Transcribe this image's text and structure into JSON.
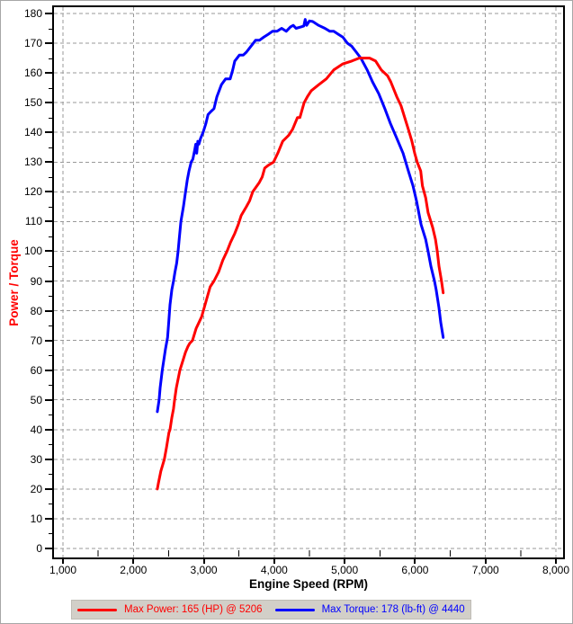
{
  "chart_data": {
    "type": "line",
    "title": "",
    "xlabel": "Engine Speed (RPM)",
    "ylabel": "Power / Torque",
    "xlim": [
      860,
      8100
    ],
    "ylim": [
      -3.3,
      182.7
    ],
    "grid": "dashed gray horizontal and vertical at major ticks",
    "legend_position": "bottom",
    "x_ticks": {
      "values": [
        1000,
        2000,
        3000,
        4000,
        5000,
        6000,
        7000,
        8000
      ],
      "labels": [
        "1,000",
        "2,000",
        "3,000",
        "4,000",
        "5,000",
        "6,000",
        "7,000",
        "8,000"
      ],
      "minor_step": 500
    },
    "y_ticks": {
      "values": [
        0,
        10,
        20,
        30,
        40,
        50,
        60,
        70,
        80,
        90,
        100,
        110,
        120,
        130,
        140,
        150,
        160,
        170,
        180
      ],
      "minor_step": 5
    },
    "series": [
      {
        "name": "Power",
        "units": "HP",
        "color": "#ff0000",
        "points": [
          [
            2340,
            20
          ],
          [
            2355,
            22
          ],
          [
            2390,
            26
          ],
          [
            2440,
            30
          ],
          [
            2470,
            34
          ],
          [
            2505,
            39
          ],
          [
            2520,
            40
          ],
          [
            2545,
            44
          ],
          [
            2570,
            47
          ],
          [
            2585,
            50
          ],
          [
            2610,
            54
          ],
          [
            2635,
            57
          ],
          [
            2660,
            60
          ],
          [
            2700,
            63
          ],
          [
            2740,
            66
          ],
          [
            2775,
            68
          ],
          [
            2800,
            69
          ],
          [
            2840,
            70
          ],
          [
            2890,
            74
          ],
          [
            2930,
            76
          ],
          [
            2970,
            78
          ],
          [
            3030,
            83
          ],
          [
            3090,
            88
          ],
          [
            3145,
            90
          ],
          [
            3210,
            93
          ],
          [
            3270,
            97
          ],
          [
            3330,
            100
          ],
          [
            3380,
            103
          ],
          [
            3440,
            106
          ],
          [
            3490,
            109
          ],
          [
            3530,
            112
          ],
          [
            3605,
            115
          ],
          [
            3650,
            117
          ],
          [
            3695,
            120
          ],
          [
            3785,
            123
          ],
          [
            3830,
            125
          ],
          [
            3865,
            128
          ],
          [
            3920,
            129
          ],
          [
            3990,
            130
          ],
          [
            4050,
            133
          ],
          [
            4120,
            137
          ],
          [
            4205,
            139
          ],
          [
            4260,
            141
          ],
          [
            4330,
            145
          ],
          [
            4365,
            145
          ],
          [
            4400,
            148
          ],
          [
            4425,
            150
          ],
          [
            4470,
            152
          ],
          [
            4525,
            154
          ],
          [
            4630,
            156
          ],
          [
            4740,
            158
          ],
          [
            4845,
            161
          ],
          [
            4970,
            163
          ],
          [
            5100,
            164
          ],
          [
            5206,
            165
          ],
          [
            5280,
            165
          ],
          [
            5355,
            165
          ],
          [
            5440,
            164
          ],
          [
            5520,
            161
          ],
          [
            5610,
            159
          ],
          [
            5655,
            157
          ],
          [
            5740,
            152
          ],
          [
            5800,
            149
          ],
          [
            5865,
            144
          ],
          [
            5905,
            141
          ],
          [
            5955,
            137
          ],
          [
            5995,
            133
          ],
          [
            6030,
            130
          ],
          [
            6080,
            127
          ],
          [
            6105,
            122
          ],
          [
            6150,
            118
          ],
          [
            6185,
            113
          ],
          [
            6250,
            108
          ],
          [
            6290,
            104
          ],
          [
            6315,
            100
          ],
          [
            6340,
            95
          ],
          [
            6375,
            90
          ],
          [
            6400,
            86
          ]
        ]
      },
      {
        "name": "Torque",
        "units": "lb-ft",
        "color": "#0000ff",
        "points": [
          [
            2340,
            46
          ],
          [
            2365,
            50
          ],
          [
            2380,
            54
          ],
          [
            2395,
            57
          ],
          [
            2410,
            60
          ],
          [
            2430,
            63
          ],
          [
            2455,
            67
          ],
          [
            2470,
            69
          ],
          [
            2485,
            71
          ],
          [
            2505,
            77
          ],
          [
            2520,
            82
          ],
          [
            2545,
            87
          ],
          [
            2570,
            90
          ],
          [
            2590,
            93
          ],
          [
            2615,
            96
          ],
          [
            2635,
            100
          ],
          [
            2650,
            104
          ],
          [
            2675,
            110
          ],
          [
            2710,
            115
          ],
          [
            2735,
            119
          ],
          [
            2765,
            124
          ],
          [
            2790,
            127
          ],
          [
            2820,
            130
          ],
          [
            2845,
            131
          ],
          [
            2870,
            134
          ],
          [
            2885,
            136
          ],
          [
            2900,
            133
          ],
          [
            2915,
            137
          ],
          [
            2930,
            136
          ],
          [
            2955,
            138
          ],
          [
            2990,
            140
          ],
          [
            3030,
            143
          ],
          [
            3060,
            146
          ],
          [
            3100,
            147
          ],
          [
            3145,
            148
          ],
          [
            3185,
            152
          ],
          [
            3250,
            156
          ],
          [
            3310,
            158
          ],
          [
            3375,
            158
          ],
          [
            3410,
            161
          ],
          [
            3440,
            164
          ],
          [
            3505,
            166
          ],
          [
            3560,
            166
          ],
          [
            3605,
            167
          ],
          [
            3670,
            169
          ],
          [
            3735,
            171
          ],
          [
            3790,
            171
          ],
          [
            3850,
            172
          ],
          [
            3915,
            173
          ],
          [
            3975,
            174
          ],
          [
            4040,
            174
          ],
          [
            4105,
            175
          ],
          [
            4170,
            174
          ],
          [
            4230,
            175.5
          ],
          [
            4270,
            176
          ],
          [
            4310,
            175
          ],
          [
            4380,
            175.5
          ],
          [
            4420,
            175.8
          ],
          [
            4440,
            178
          ],
          [
            4460,
            176
          ],
          [
            4500,
            177.5
          ],
          [
            4545,
            177.3
          ],
          [
            4565,
            177
          ],
          [
            4630,
            176
          ],
          [
            4720,
            175
          ],
          [
            4790,
            174
          ],
          [
            4845,
            174
          ],
          [
            4910,
            173
          ],
          [
            4975,
            172
          ],
          [
            5040,
            170
          ],
          [
            5100,
            169
          ],
          [
            5165,
            167
          ],
          [
            5230,
            165
          ],
          [
            5320,
            161
          ],
          [
            5395,
            157
          ],
          [
            5485,
            153
          ],
          [
            5570,
            148
          ],
          [
            5650,
            143
          ],
          [
            5740,
            138
          ],
          [
            5830,
            133
          ],
          [
            5905,
            127
          ],
          [
            5970,
            122
          ],
          [
            6020,
            117
          ],
          [
            6085,
            109
          ],
          [
            6150,
            104
          ],
          [
            6185,
            100
          ],
          [
            6225,
            95
          ],
          [
            6275,
            90
          ],
          [
            6300,
            87
          ],
          [
            6340,
            81
          ],
          [
            6365,
            76
          ],
          [
            6400,
            71
          ]
        ]
      }
    ],
    "legend": {
      "entries": [
        {
          "label": "Max Power: 165 (HP) @ 5206",
          "color": "#ff0000"
        },
        {
          "label": "Max Torque: 178 (lb-ft) @ 4440",
          "color": "#0000ff"
        }
      ]
    },
    "annotations": {
      "max_power": {
        "value": 165,
        "units": "HP",
        "rpm": 5206
      },
      "max_torque": {
        "value": 178,
        "units": "lb-ft",
        "rpm": 4440
      }
    }
  },
  "colors": {
    "power": "#ff0000",
    "torque": "#0000ff",
    "grid": "#999999",
    "axis": "#000000",
    "legend_bg": "#d2cfc8"
  }
}
